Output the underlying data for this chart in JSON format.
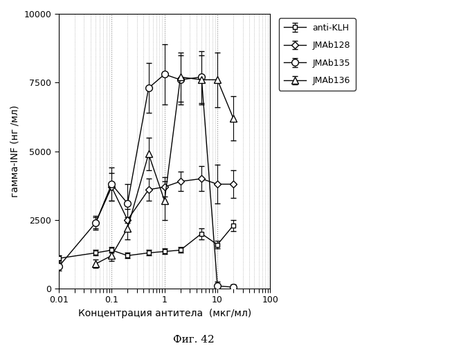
{
  "xlabel": "Концентрация антитела  (мкг/мл)",
  "ylabel": "гамма-INF (нг /мл)",
  "caption": "Фиг. 42",
  "ylim": [
    0,
    10000
  ],
  "yticks": [
    0,
    2500,
    5000,
    7500,
    10000
  ],
  "xlim": [
    0.01,
    100
  ],
  "series": {
    "anti-KLH": {
      "x": [
        0.01,
        0.05,
        0.1,
        0.2,
        0.5,
        1.0,
        2.0,
        5.0,
        10.0,
        20.0
      ],
      "y": [
        1100,
        1300,
        1400,
        1200,
        1300,
        1350,
        1400,
        2000,
        1600,
        2300
      ],
      "yerr": [
        100,
        100,
        100,
        100,
        100,
        100,
        100,
        200,
        150,
        200
      ]
    },
    "JMAb128": {
      "x": [
        0.05,
        0.1,
        0.2,
        0.5,
        1.0,
        2.0,
        5.0,
        10.0,
        20.0
      ],
      "y": [
        2400,
        3700,
        2500,
        3600,
        3700,
        3900,
        4000,
        3800,
        3800
      ],
      "yerr": [
        250,
        500,
        400,
        400,
        350,
        350,
        450,
        700,
        500
      ]
    },
    "JMAb135": {
      "x": [
        0.01,
        0.05,
        0.1,
        0.2,
        0.5,
        1.0,
        2.0,
        5.0,
        10.0,
        20.0
      ],
      "y": [
        800,
        2400,
        3800,
        3100,
        7300,
        7800,
        7600,
        7700,
        100,
        50
      ],
      "yerr": [
        150,
        200,
        600,
        700,
        900,
        1100,
        900,
        950,
        150,
        100
      ]
    },
    "JMAb136": {
      "x": [
        0.05,
        0.1,
        0.2,
        0.5,
        1.0,
        2.0,
        5.0,
        10.0,
        20.0
      ],
      "y": [
        900,
        1200,
        2200,
        4900,
        3200,
        7700,
        7600,
        7600,
        6200
      ],
      "yerr": [
        150,
        200,
        400,
        600,
        700,
        900,
        900,
        1000,
        800
      ]
    }
  }
}
